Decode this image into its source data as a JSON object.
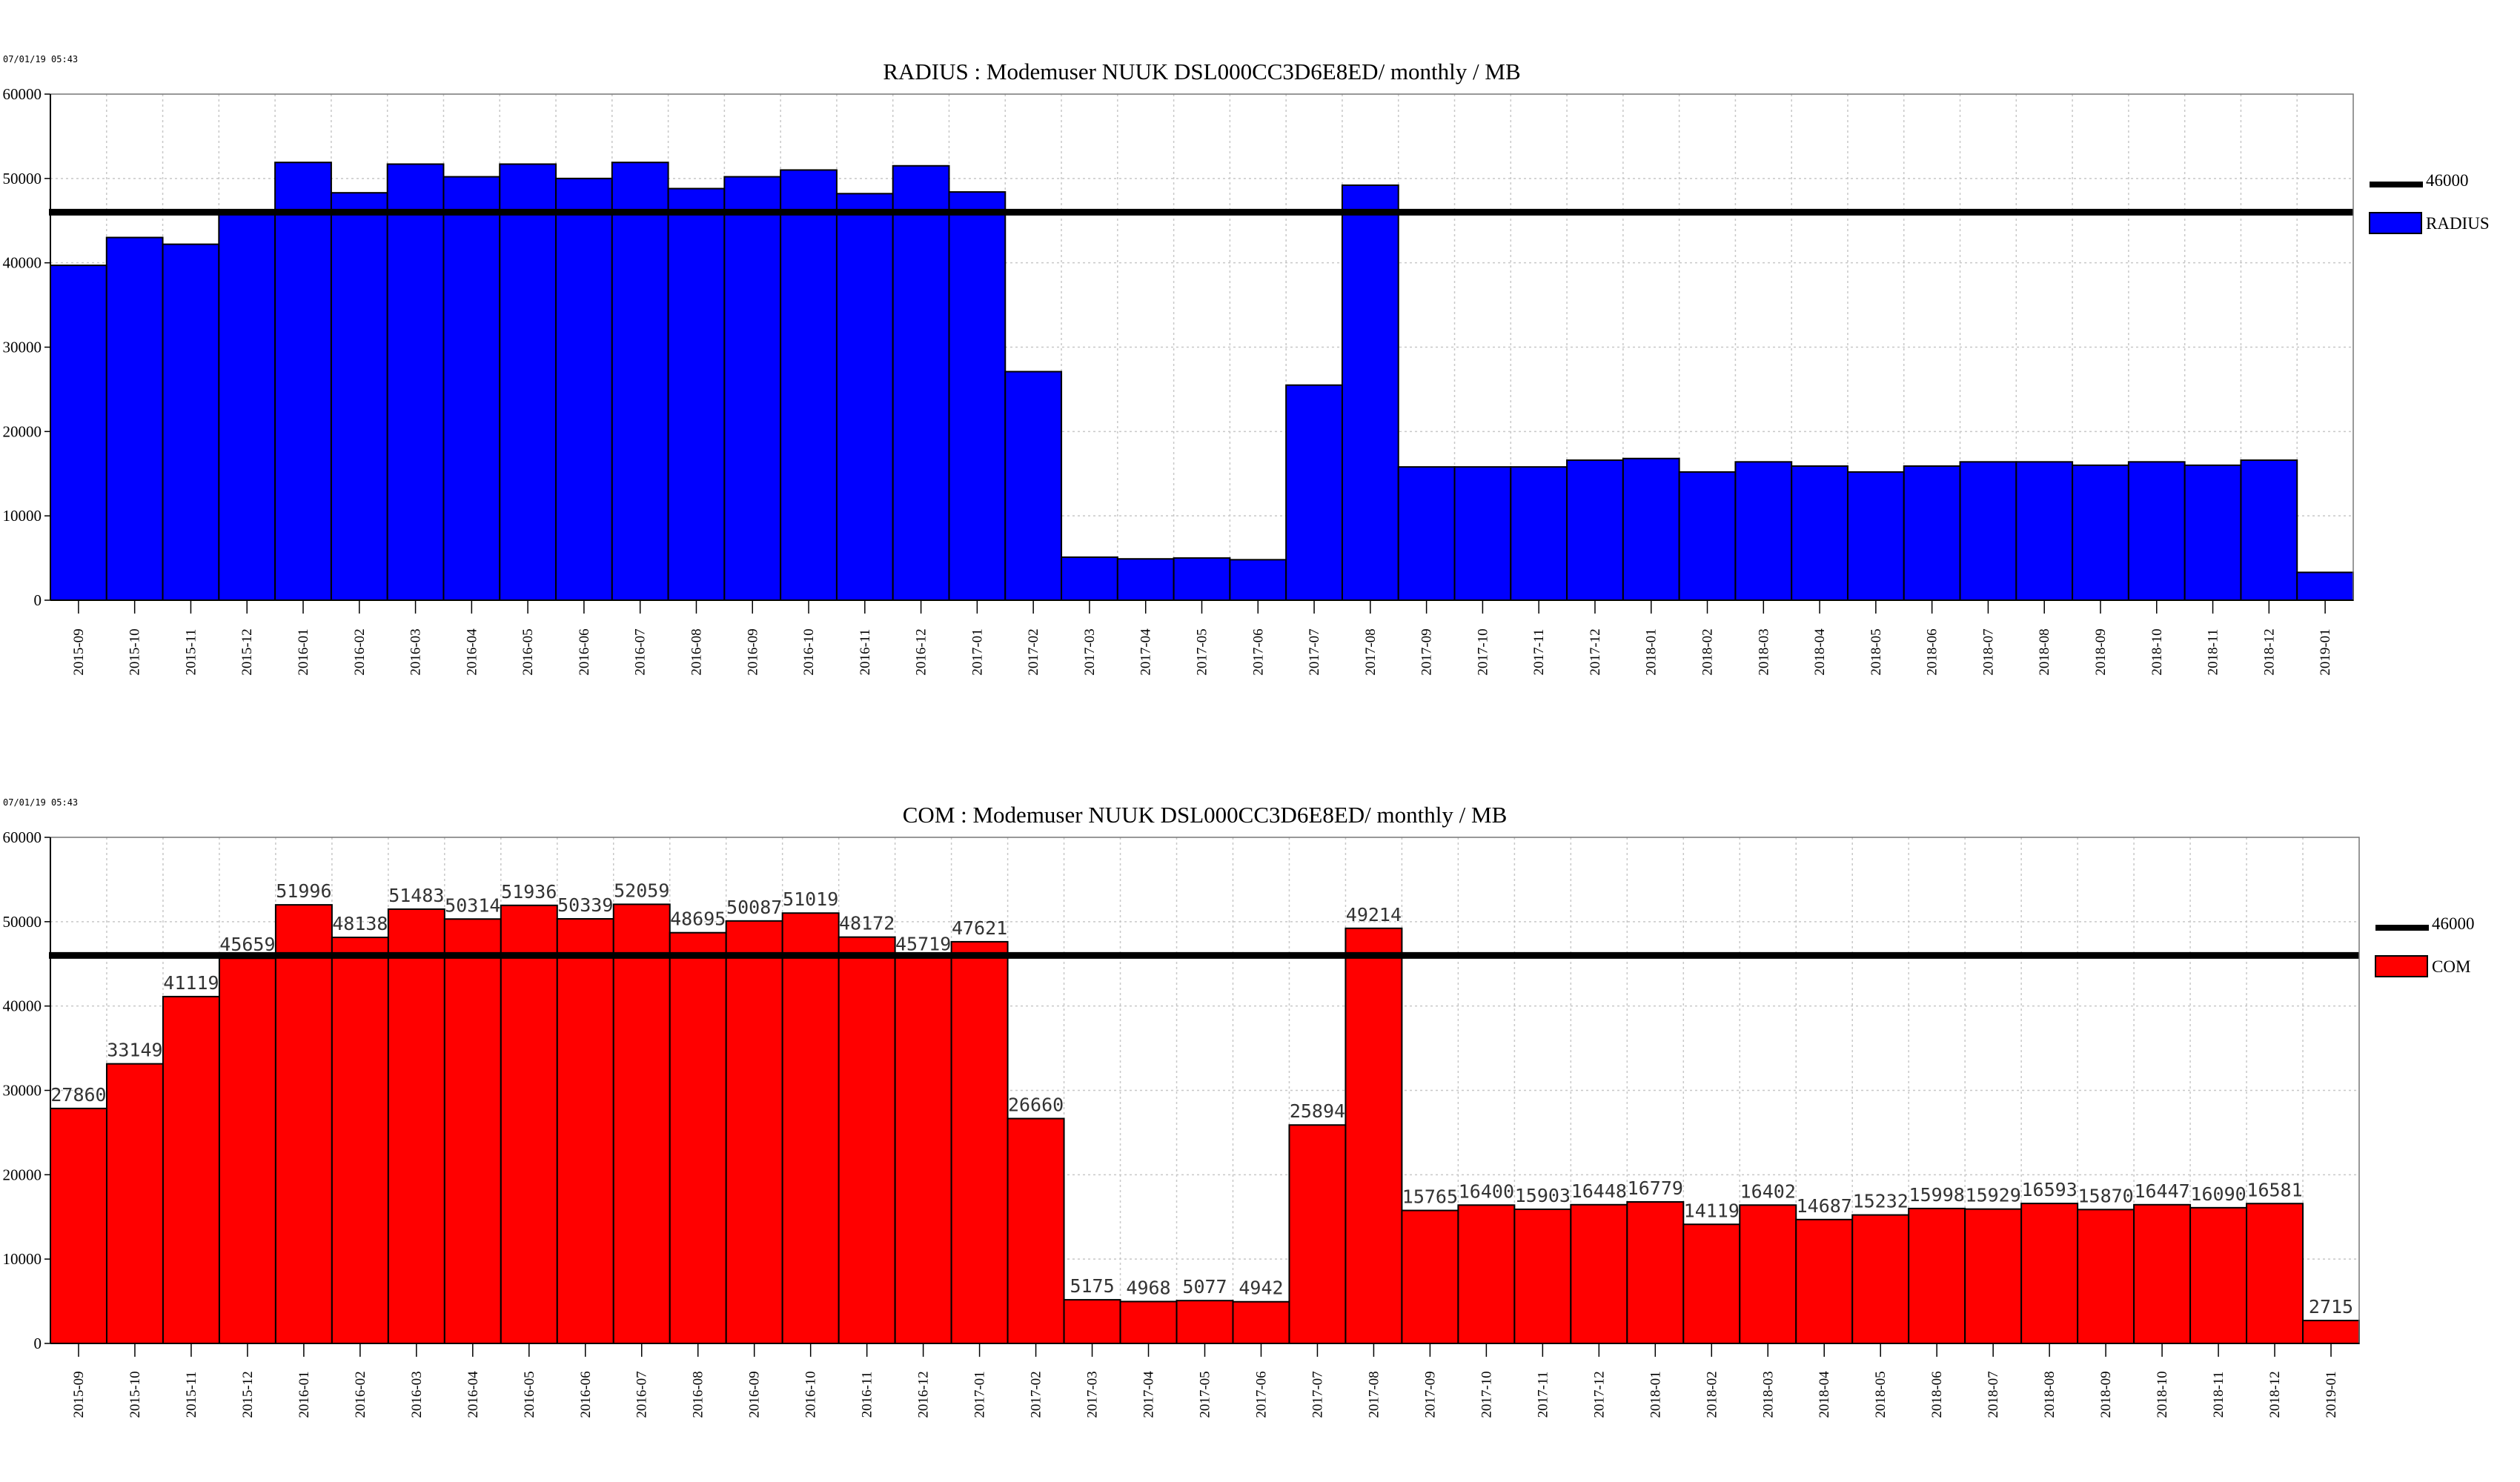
{
  "chart_data": [
    {
      "type": "bar",
      "timestamp": "07/01/19 05:43",
      "title": "RADIUS : Modemuser NUUK DSL000CC3D6E8ED/ monthly / MB",
      "xlabel": "",
      "ylabel": "",
      "ylim": [
        0,
        60000
      ],
      "yticks": [
        "60000",
        "50000",
        "40000",
        "30000",
        "20000",
        "10000",
        "0"
      ],
      "grid": true,
      "legend_position": "right",
      "bar_color": "#0000ff",
      "reference_line": {
        "value": 46000,
        "label": "46000"
      },
      "series": [
        {
          "name": "RADIUS"
        }
      ],
      "show_data_labels": false,
      "categories": [
        "2015-09",
        "2015-10",
        "2015-11",
        "2015-12",
        "2016-01",
        "2016-02",
        "2016-03",
        "2016-04",
        "2016-05",
        "2016-06",
        "2016-07",
        "2016-08",
        "2016-09",
        "2016-10",
        "2016-11",
        "2016-12",
        "2017-01",
        "2017-02",
        "2017-03",
        "2017-04",
        "2017-05",
        "2017-06",
        "2017-07",
        "2017-08",
        "2017-09",
        "2017-10",
        "2017-11",
        "2017-12",
        "2018-01",
        "2018-02",
        "2018-03",
        "2018-04",
        "2018-05",
        "2018-06",
        "2018-07",
        "2018-08",
        "2018-09",
        "2018-10",
        "2018-11",
        "2018-12",
        "2019-01"
      ],
      "values": [
        39700,
        43000,
        42200,
        46100,
        51900,
        48300,
        51700,
        50200,
        51700,
        50000,
        51900,
        48800,
        50200,
        51000,
        48200,
        51500,
        48400,
        27100,
        5100,
        4900,
        5000,
        4800,
        25500,
        49200,
        15800,
        15800,
        15800,
        16600,
        16800,
        15200,
        16400,
        15900,
        15200,
        15900,
        16400,
        16400,
        16000,
        16400,
        16000,
        16600,
        3300
      ]
    },
    {
      "type": "bar",
      "timestamp": "07/01/19 05:43",
      "title": "COM : Modemuser NUUK DSL000CC3D6E8ED/ monthly / MB",
      "xlabel": "",
      "ylabel": "",
      "ylim": [
        0,
        60000
      ],
      "yticks": [
        "60000",
        "50000",
        "40000",
        "30000",
        "20000",
        "10000",
        "0"
      ],
      "grid": true,
      "legend_position": "right",
      "bar_color": "#ff0000",
      "reference_line": {
        "value": 46000,
        "label": "46000"
      },
      "series": [
        {
          "name": "COM"
        }
      ],
      "show_data_labels": true,
      "categories": [
        "2015-09",
        "2015-10",
        "2015-11",
        "2015-12",
        "2016-01",
        "2016-02",
        "2016-03",
        "2016-04",
        "2016-05",
        "2016-06",
        "2016-07",
        "2016-08",
        "2016-09",
        "2016-10",
        "2016-11",
        "2016-12",
        "2017-01",
        "2017-02",
        "2017-03",
        "2017-04",
        "2017-05",
        "2017-06",
        "2017-07",
        "2017-08",
        "2017-09",
        "2017-10",
        "2017-11",
        "2017-12",
        "2018-01",
        "2018-02",
        "2018-03",
        "2018-04",
        "2018-05",
        "2018-06",
        "2018-07",
        "2018-08",
        "2018-09",
        "2018-10",
        "2018-11",
        "2018-12",
        "2019-01"
      ],
      "values": [
        27860,
        33149,
        41119,
        45659,
        51996,
        48138,
        51483,
        50314,
        51936,
        50339,
        52059,
        48695,
        50087,
        51019,
        48172,
        45719,
        47621,
        26660,
        5175,
        4968,
        5077,
        4942,
        25894,
        49214,
        15765,
        16400,
        15903,
        16448,
        16779,
        14119,
        16402,
        14687,
        15232,
        15998,
        15929,
        16593,
        15870,
        16447,
        16090,
        16581,
        2715
      ]
    }
  ]
}
